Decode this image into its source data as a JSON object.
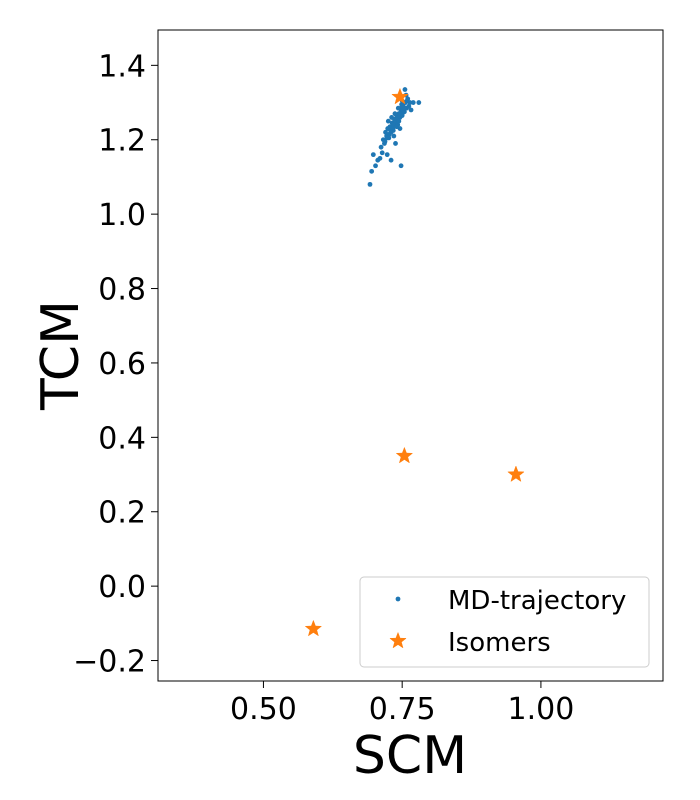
{
  "chart_data": {
    "type": "scatter",
    "xlabel": "SCM",
    "ylabel": "TCM",
    "xlim": [
      0.31,
      1.22
    ],
    "ylim": [
      -0.255,
      1.495
    ],
    "x_ticks": [
      0.5,
      0.75,
      1.0
    ],
    "x_tick_labels": [
      "0.50",
      "0.75",
      "1.00"
    ],
    "y_ticks": [
      -0.2,
      0.0,
      0.2,
      0.4,
      0.6,
      0.8,
      1.0,
      1.2,
      1.4
    ],
    "y_tick_labels": [
      "−0.2",
      "0.0",
      "0.2",
      "0.4",
      "0.6",
      "0.8",
      "1.0",
      "1.2",
      "1.4"
    ],
    "grid": false,
    "legend_position": "lower-right",
    "series": [
      {
        "name": "MD-trajectory",
        "marker": "dot",
        "color": "#1f77b4",
        "x": [
          0.692,
          0.695,
          0.698,
          0.702,
          0.706,
          0.71,
          0.712,
          0.714,
          0.716,
          0.718,
          0.72,
          0.722,
          0.724,
          0.726,
          0.728,
          0.73,
          0.732,
          0.734,
          0.736,
          0.738,
          0.74,
          0.742,
          0.744,
          0.746,
          0.748,
          0.75,
          0.752,
          0.754,
          0.756,
          0.758,
          0.76,
          0.762,
          0.764,
          0.766,
          0.77,
          0.78,
          0.725,
          0.731,
          0.737,
          0.743,
          0.749,
          0.727,
          0.733,
          0.739,
          0.745,
          0.751,
          0.757,
          0.719,
          0.723,
          0.729,
          0.735,
          0.741,
          0.747,
          0.753,
          0.759,
          0.735,
          0.742,
          0.75,
          0.723,
          0.73,
          0.738,
          0.746,
          0.753,
          0.744,
          0.75,
          0.755,
          0.74,
          0.745,
          0.75,
          0.748
        ],
        "y": [
          1.08,
          1.115,
          1.16,
          1.13,
          1.145,
          1.15,
          1.18,
          1.165,
          1.2,
          1.19,
          1.22,
          1.21,
          1.23,
          1.205,
          1.235,
          1.22,
          1.245,
          1.225,
          1.255,
          1.24,
          1.265,
          1.25,
          1.27,
          1.26,
          1.28,
          1.27,
          1.29,
          1.275,
          1.3,
          1.285,
          1.31,
          1.29,
          1.3,
          1.28,
          1.3,
          1.3,
          1.25,
          1.26,
          1.27,
          1.285,
          1.295,
          1.215,
          1.23,
          1.245,
          1.26,
          1.28,
          1.32,
          1.195,
          1.205,
          1.225,
          1.24,
          1.255,
          1.27,
          1.285,
          1.305,
          1.21,
          1.24,
          1.305,
          1.16,
          1.145,
          1.19,
          1.23,
          1.3,
          1.25,
          1.265,
          1.335,
          1.235,
          1.27,
          1.29,
          1.13
        ]
      },
      {
        "name": "Isomers",
        "marker": "star",
        "color": "#ff7f0e",
        "x": [
          0.746,
          0.754,
          0.955,
          0.59
        ],
        "y": [
          1.315,
          0.35,
          0.3,
          -0.115
        ]
      }
    ]
  }
}
